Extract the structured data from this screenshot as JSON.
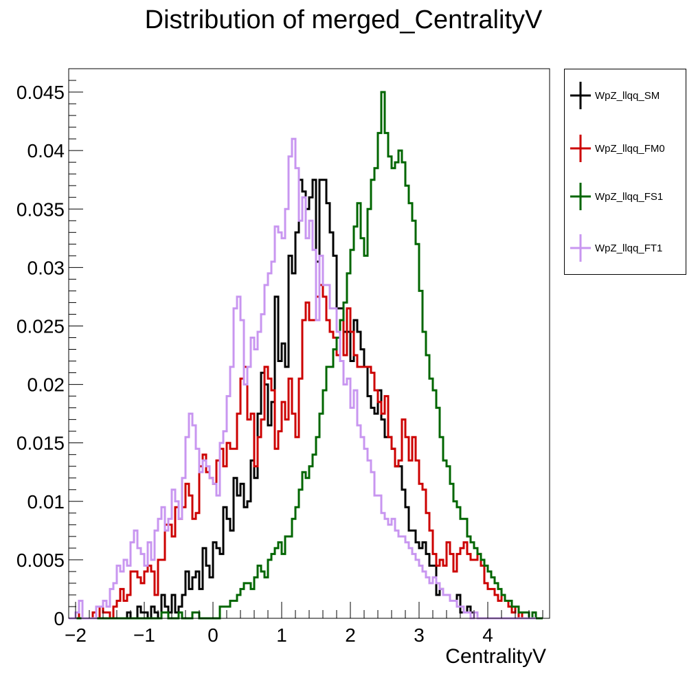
{
  "title": "Distribution of merged_CentralityV",
  "chart_data": {
    "type": "histogram",
    "title": "Distribution of merged_CentralityV",
    "xlabel": "CentralityV",
    "ylabel": "",
    "xlim": [
      -2.1,
      4.9
    ],
    "ylim": [
      0,
      0.047
    ],
    "x_ticks": [
      "−2",
      "−1",
      "0",
      "1",
      "2",
      "3",
      "4"
    ],
    "x_tick_values": [
      -2,
      -1,
      0,
      1,
      2,
      3,
      4
    ],
    "y_ticks": [
      "0",
      "0.005",
      "0.01",
      "0.015",
      "0.02",
      "0.025",
      "0.03",
      "0.035",
      "0.04",
      "0.045"
    ],
    "y_tick_values": [
      0,
      0.005,
      0.01,
      0.015,
      0.02,
      0.025,
      0.03,
      0.035,
      0.04,
      0.045
    ],
    "bin_start": -2.1,
    "bin_width": 0.05,
    "grid": false,
    "legend_position": "right",
    "series": [
      {
        "name": "WpZ_llqq_SM",
        "color": "#000000",
        "values": [
          0,
          0,
          0,
          0,
          0,
          0,
          0,
          0,
          0,
          0,
          0,
          0,
          0,
          0,
          0,
          0,
          0,
          0.0005,
          0,
          0,
          0.001,
          0.0005,
          0.0005,
          0,
          0.001,
          0.0005,
          0,
          0.002,
          0.001,
          0.0005,
          0.002,
          0.0005,
          0.001,
          0.002,
          0.004,
          0.0025,
          0.0035,
          0.004,
          0.0025,
          0.006,
          0.0045,
          0.0035,
          0.0065,
          0.006,
          0.0055,
          0.0095,
          0.0085,
          0.0075,
          0.012,
          0.0105,
          0.0115,
          0.0095,
          0.01,
          0.0135,
          0.012,
          0.0175,
          0.021,
          0.02,
          0.0165,
          0.0185,
          0.0275,
          0.022,
          0.0235,
          0.0215,
          0.031,
          0.0295,
          0.033,
          0.0375,
          0.0365,
          0.035,
          0.036,
          0.0375,
          0.0305,
          0.0375,
          0.0375,
          0.0355,
          0.033,
          0.031,
          0.0265,
          0.0265,
          0.0245,
          0.0245,
          0.022,
          0.0255,
          0.0245,
          0.023,
          0.0215,
          0.019,
          0.018,
          0.0175,
          0.0195,
          0.017,
          0.0155,
          0.0155,
          0.0145,
          0.013,
          0.013,
          0.011,
          0.0095,
          0.0075,
          0.0075,
          0.0065,
          0.006,
          0.0065,
          0.0055,
          0.0045,
          0.0045,
          0.002,
          0.0025,
          0.002,
          0.002,
          0.0015,
          0.0015,
          0.002,
          0.0005,
          0.0005,
          0.001,
          0.0005,
          0.0005,
          0,
          0,
          0,
          0,
          0,
          0,
          0,
          0,
          0,
          0,
          0,
          0,
          0,
          0,
          0,
          0,
          0,
          0,
          0
        ]
      },
      {
        "name": "WpZ_llqq_FM0",
        "color": "#cc0000",
        "values": [
          0,
          0,
          0,
          0.0015,
          0,
          0,
          0,
          0.0005,
          0,
          0.001,
          0.0005,
          0.0005,
          0,
          0.001,
          0.0015,
          0.0025,
          0.0015,
          0.002,
          0.004,
          0.004,
          0.0035,
          0.003,
          0.004,
          0.0045,
          0.004,
          0.002,
          0.005,
          0.005,
          0.008,
          0.008,
          0.007,
          0.0095,
          0.0085,
          0.0095,
          0.0115,
          0.0105,
          0.0085,
          0.009,
          0.013,
          0.014,
          0.0125,
          0.012,
          0.0115,
          0.0135,
          0.0145,
          0.013,
          0.015,
          0.0145,
          0.0145,
          0.0175,
          0.0205,
          0.0215,
          0.017,
          0.0175,
          0.013,
          0.0155,
          0.017,
          0.0215,
          0.0205,
          0.0195,
          0.0145,
          0.016,
          0.0185,
          0.017,
          0.0205,
          0.0175,
          0.0155,
          0.0205,
          0.0255,
          0.027,
          0.0255,
          0.0255,
          0.0275,
          0.0285,
          0.0275,
          0.0255,
          0.0245,
          0.024,
          0.0225,
          0.0255,
          0.0225,
          0.0265,
          0.0245,
          0.0225,
          0.0215,
          0.0215,
          0.0215,
          0.0215,
          0.021,
          0.0195,
          0.0185,
          0.0175,
          0.019,
          0.0155,
          0.0145,
          0.013,
          0.0135,
          0.017,
          0.0155,
          0.0135,
          0.0155,
          0.0135,
          0.0115,
          0.011,
          0.009,
          0.0075,
          0.0055,
          0.0045,
          0.005,
          0.0045,
          0.0065,
          0.0055,
          0.004,
          0.0055,
          0.006,
          0.0065,
          0.0055,
          0.005,
          0.005,
          0.0055,
          0.0045,
          0.003,
          0.0025,
          0.0025,
          0.002,
          0.0015,
          0.002,
          0.0015,
          0.001,
          0.0005,
          0.001,
          0,
          0.0005,
          0.0005,
          0,
          0,
          0,
          0
        ]
      },
      {
        "name": "WpZ_llqq_FS1",
        "color": "#006600",
        "values": [
          0,
          0,
          0,
          0,
          0,
          0,
          0,
          0,
          0,
          0,
          0,
          0,
          0,
          0,
          0,
          0,
          0,
          0,
          0,
          0,
          0,
          0,
          0,
          0,
          0,
          0,
          0,
          0.0005,
          0.0005,
          0,
          0,
          0,
          0.0005,
          0,
          0,
          0,
          0.0005,
          0.0005,
          0,
          0,
          0,
          0,
          0,
          0,
          0.001,
          0.001,
          0.001,
          0.0015,
          0.0015,
          0.002,
          0.0025,
          0.003,
          0.003,
          0.0025,
          0.0035,
          0.0045,
          0.004,
          0.0035,
          0.005,
          0.0055,
          0.006,
          0.0065,
          0.0055,
          0.007,
          0.007,
          0.0085,
          0.0095,
          0.011,
          0.0125,
          0.012,
          0.013,
          0.014,
          0.0155,
          0.0175,
          0.0195,
          0.0215,
          0.0215,
          0.023,
          0.024,
          0.0255,
          0.027,
          0.0295,
          0.0315,
          0.0335,
          0.0355,
          0.0325,
          0.031,
          0.035,
          0.0375,
          0.0385,
          0.0415,
          0.045,
          0.0415,
          0.0395,
          0.0385,
          0.039,
          0.04,
          0.039,
          0.037,
          0.0355,
          0.034,
          0.032,
          0.028,
          0.0245,
          0.0225,
          0.0205,
          0.0195,
          0.018,
          0.0155,
          0.0135,
          0.013,
          0.0115,
          0.01,
          0.0095,
          0.0085,
          0.0085,
          0.007,
          0.0065,
          0.006,
          0.0055,
          0.005,
          0.0045,
          0.004,
          0.0035,
          0.003,
          0.0025,
          0.002,
          0.0015,
          0.0015,
          0.001,
          0.001,
          0.0005,
          0.0005,
          0.0005,
          0,
          0.0005,
          0,
          0
        ]
      },
      {
        "name": "WpZ_llqq_FT1",
        "color": "#c896f0",
        "values": [
          0,
          0,
          0.0005,
          0.0015,
          0,
          0,
          0,
          0,
          0.001,
          0.001,
          0.0015,
          0.001,
          0.0025,
          0.003,
          0.0045,
          0.004,
          0.005,
          0.0045,
          0.0065,
          0.0075,
          0.006,
          0.0055,
          0.0045,
          0.0065,
          0.005,
          0.0075,
          0.0085,
          0.0095,
          0.0075,
          0.0085,
          0.011,
          0.01,
          0.0085,
          0.012,
          0.0155,
          0.0175,
          0.0165,
          0.0145,
          0.0125,
          0.0135,
          0.013,
          0.012,
          0.0115,
          0.0105,
          0.015,
          0.016,
          0.019,
          0.0215,
          0.0265,
          0.0275,
          0.0255,
          0.02,
          0.0215,
          0.024,
          0.023,
          0.0245,
          0.026,
          0.0285,
          0.0295,
          0.0305,
          0.0335,
          0.033,
          0.0325,
          0.035,
          0.0395,
          0.041,
          0.0385,
          0.034,
          0.036,
          0.0325,
          0.034,
          0.0315,
          0.0255,
          0.031,
          0.0285,
          0.0285,
          0.0265,
          0.0265,
          0.0245,
          0.022,
          0.02,
          0.0205,
          0.018,
          0.0195,
          0.0165,
          0.0155,
          0.0145,
          0.0135,
          0.0125,
          0.0105,
          0.0105,
          0.009,
          0.0085,
          0.008,
          0.0085,
          0.0075,
          0.007,
          0.007,
          0.0065,
          0.006,
          0.0055,
          0.005,
          0.0045,
          0.004,
          0.0035,
          0.003,
          0.0035,
          0.003,
          0.0025,
          0.002,
          0.002,
          0.0015,
          0.0015,
          0.001,
          0.001,
          0.0005,
          0.0005,
          0,
          0.0005,
          0,
          0,
          0,
          0,
          0,
          0,
          0,
          0,
          0,
          0,
          0,
          0,
          0,
          0,
          0,
          0,
          0
        ]
      }
    ]
  }
}
